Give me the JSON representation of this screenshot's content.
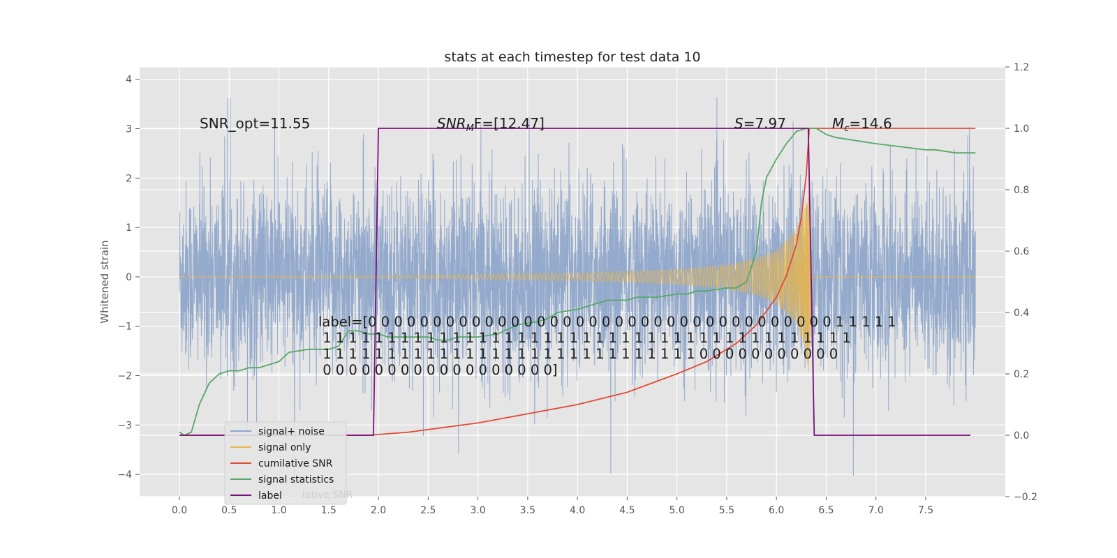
{
  "chart_data": {
    "type": "line",
    "title": "stats at each timestep for test data 10",
    "xlabel": "",
    "ylabel": "Whitened strain",
    "xlim": [
      -0.4,
      8.3
    ],
    "ylim": [
      -4.45,
      4.25
    ],
    "y2lim": [
      -0.2,
      1.2
    ],
    "x_ticks": [
      "0.0",
      "0.5",
      "1.0",
      "1.5",
      "2.0",
      "2.5",
      "3.0",
      "3.5",
      "4.0",
      "4.5",
      "5.0",
      "5.5",
      "6.0",
      "6.5",
      "7.0",
      "7.5"
    ],
    "y_ticks": [
      "4",
      "3",
      "2",
      "1",
      "0",
      "−1",
      "−2",
      "−3",
      "−4"
    ],
    "y2_ticks": [
      "1.2",
      "1.0",
      "0.8",
      "0.6",
      "0.4",
      "0.2",
      "0.0",
      "−0.2"
    ],
    "grid": true,
    "legend_placement": "lower-left",
    "annotations": {
      "snr_opt": "SNR_opt=11.55",
      "snr_mf": "SNRₘF=[12.47]",
      "snr_mf_base": "SNR",
      "snr_mf_sub": "M",
      "snr_mf_rest": "F=[12.47]",
      "s_value": "S=7.97",
      "s_italic": "S",
      "s_rest": "=7.97",
      "mc_value": "Mc=14.6",
      "mc_base": "M",
      "mc_sub": "c",
      "mc_rest": "=14.6",
      "label_lines": [
        "label=[0 0 0 0 0 0 0 0 0 0 0 0 0 0 0 0 0 0 0 0 0 0 0 0 0 0 0 0 0 0 0 0 0 0 0 0 1 1 1 1 1",
        " 1 1 1 1 1 1 1 1 1 1 1 1 1 1 1 1 1 1 1 1 1 1 1 1 1 1 1 1 1 1 1 1 1 1 1 1 1 1 1 1 1",
        " 1 1 1 1 1 1 1 1 1 1 1 1 1 1 1 1 1 1 1 1 1 1 1 1 1 1 1 1 1 0 0 0 0 0 0 0 0 0 0 0",
        " 0 0 0 0 0 0 0 0 0 0 0 0 0 0 0 0 0 0]"
      ]
    },
    "legend": {
      "items": [
        "signal+ noise",
        "signal only",
        "cumilative SNR",
        "signal statistics",
        "label"
      ],
      "ghost_text": "lative SNR"
    },
    "series": [
      {
        "name": "signal+ noise",
        "axis": "left",
        "color": "#8fa6ca",
        "noise_amplitude": 2.6,
        "x_range": [
          0.0,
          8.0
        ]
      },
      {
        "name": "signal only",
        "axis": "left",
        "color": "#e8b54a",
        "envelope": [
          [
            0.0,
            0.02
          ],
          [
            2.0,
            0.03
          ],
          [
            3.0,
            0.05
          ],
          [
            4.0,
            0.08
          ],
          [
            5.0,
            0.15
          ],
          [
            5.5,
            0.25
          ],
          [
            5.8,
            0.38
          ],
          [
            6.0,
            0.55
          ],
          [
            6.2,
            0.95
          ],
          [
            6.3,
            1.6
          ],
          [
            6.33,
            2.0
          ],
          [
            6.36,
            0.0
          ],
          [
            8.0,
            0.0
          ]
        ]
      },
      {
        "name": "cumilative SNR",
        "axis": "right",
        "color": "#e24a33",
        "x": [
          0.0,
          1.0,
          1.9,
          2.3,
          3.0,
          3.5,
          4.0,
          4.5,
          5.0,
          5.3,
          5.6,
          5.8,
          6.0,
          6.1,
          6.2,
          6.25,
          6.3,
          6.33,
          6.4,
          8.0
        ],
        "y": [
          0.0,
          0.0,
          0.0,
          0.01,
          0.04,
          0.07,
          0.1,
          0.14,
          0.2,
          0.24,
          0.3,
          0.36,
          0.45,
          0.52,
          0.62,
          0.71,
          0.85,
          1.0,
          1.0,
          1.0
        ]
      },
      {
        "name": "signal statistics",
        "axis": "right",
        "color": "#55a868",
        "x": [
          0.0,
          0.05,
          0.12,
          0.2,
          0.3,
          0.4,
          0.5,
          0.6,
          0.7,
          0.8,
          0.9,
          1.0,
          1.1,
          1.3,
          1.5,
          1.6,
          1.7,
          1.8,
          1.9,
          2.0,
          2.1,
          2.3,
          2.5,
          2.6,
          2.7,
          2.8,
          3.0,
          3.2,
          3.4,
          3.6,
          3.7,
          3.8,
          4.0,
          4.1,
          4.2,
          4.3,
          4.4,
          4.5,
          4.6,
          4.8,
          5.0,
          5.1,
          5.2,
          5.3,
          5.5,
          5.6,
          5.7,
          5.8,
          5.85,
          5.9,
          6.0,
          6.1,
          6.2,
          6.3,
          6.4,
          6.5,
          6.6,
          7.0,
          7.5,
          7.6,
          7.8,
          8.0
        ],
        "y": [
          0.01,
          0.0,
          0.01,
          0.1,
          0.17,
          0.2,
          0.21,
          0.21,
          0.22,
          0.22,
          0.23,
          0.24,
          0.27,
          0.28,
          0.28,
          0.29,
          0.34,
          0.34,
          0.33,
          0.33,
          0.32,
          0.32,
          0.32,
          0.31,
          0.31,
          0.32,
          0.32,
          0.33,
          0.36,
          0.37,
          0.38,
          0.4,
          0.41,
          0.42,
          0.43,
          0.44,
          0.44,
          0.44,
          0.45,
          0.45,
          0.46,
          0.46,
          0.47,
          0.47,
          0.48,
          0.48,
          0.5,
          0.6,
          0.76,
          0.84,
          0.9,
          0.95,
          0.99,
          1.0,
          1.0,
          0.98,
          0.97,
          0.95,
          0.93,
          0.93,
          0.92,
          0.92
        ]
      },
      {
        "name": "label",
        "axis": "right",
        "color": "#7b0f7b",
        "x": [
          0.0,
          1.95,
          2.0,
          6.32,
          6.38,
          7.95
        ],
        "y": [
          0.0,
          0.0,
          1.0,
          1.0,
          0.0,
          0.0
        ]
      }
    ]
  }
}
